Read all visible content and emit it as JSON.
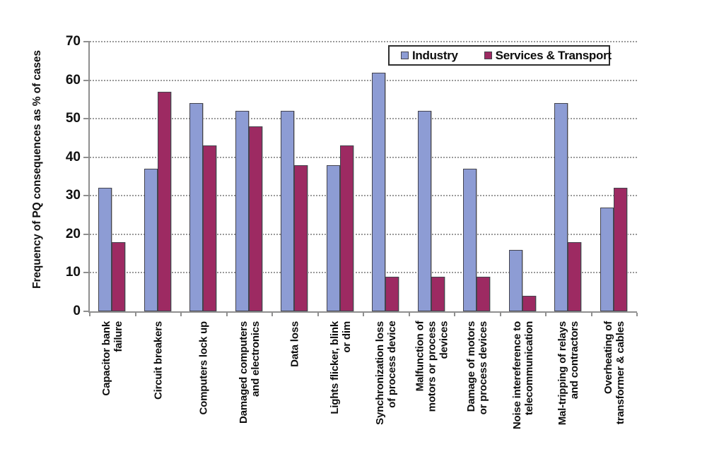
{
  "chart_data": {
    "type": "bar",
    "title": "",
    "xlabel": "",
    "ylabel": "Frequency of PQ consequences as % of cases",
    "ylim": [
      0,
      70
    ],
    "ytick_step": 10,
    "grid": "horizontal-dotted",
    "legend_position": "top-right-inside",
    "categories": [
      "Capacitor bank\nfailure",
      "Circuit breakers",
      "Computers lock up",
      "Damaged computers\nand electronics",
      "Data loss",
      "Lights flicker, blink\nor dim",
      "Synchronization loss\nof process device",
      "Malfunction of\nmotors or process\ndevices",
      "Damage of motors\nor process devices",
      "Noise intereference to\ntelecommunication",
      "Mal-tripping of relays\nand contractors",
      "Overheating of\ntransformer & cables"
    ],
    "series": [
      {
        "name": "Industry",
        "color": "#8D9CD4",
        "values": [
          32,
          37,
          54,
          52,
          52,
          38,
          62,
          52,
          37,
          16,
          54,
          27
        ]
      },
      {
        "name": "Services & Transport",
        "color": "#9D2A62",
        "values": [
          18,
          57,
          43,
          48,
          38,
          43,
          9,
          9,
          9,
          4,
          18,
          32
        ]
      }
    ]
  },
  "colors": {
    "axis": "#8f8f8f",
    "gridline": "#9a9a9a",
    "text": "#0d0d0d",
    "background": "#ffffff"
  }
}
